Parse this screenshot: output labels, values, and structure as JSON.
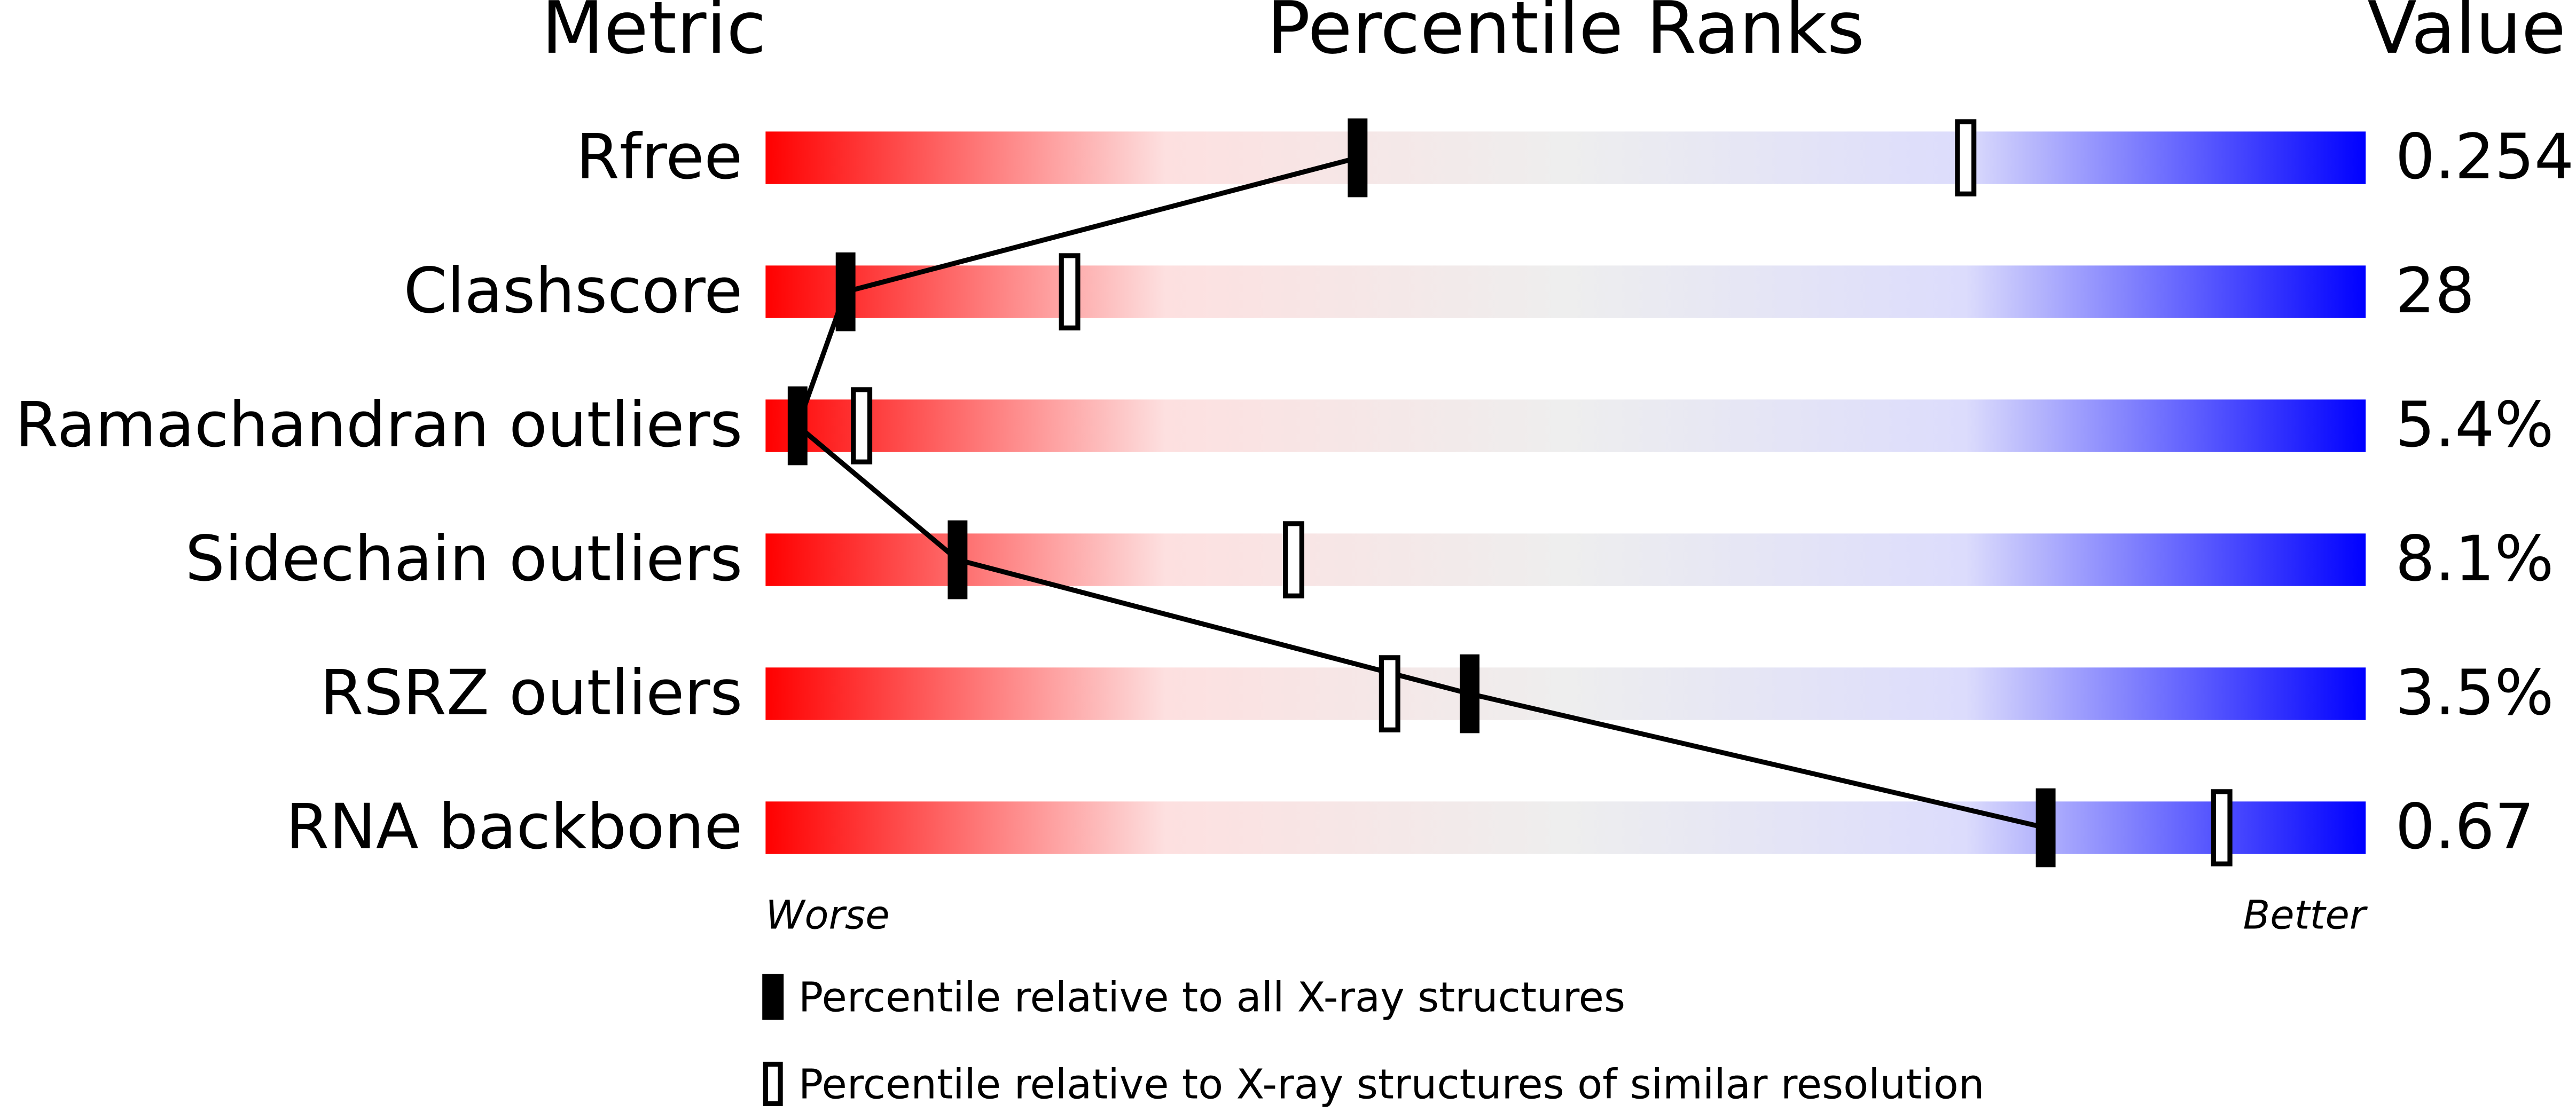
{
  "chart_data": {
    "type": "percentile",
    "title": "Percentile Ranks",
    "metric_header": "Metric",
    "value_header": "Value",
    "categories": [
      "Rfree",
      "Clashscore",
      "Ramachandran outliers",
      "Sidechain outliers",
      "RSRZ outliers",
      "RNA backbone"
    ],
    "metric_values": [
      "0.254",
      "28",
      "5.4%",
      "8.1%",
      "3.5%",
      "0.67"
    ],
    "series": [
      {
        "name": "Percentile relative to all X-ray structures",
        "color": "#000000",
        "style": "solid",
        "values": [
          37,
          5,
          2,
          12,
          44,
          80
        ]
      },
      {
        "name": "Percentile relative to X-ray structures of similar resolution",
        "color": "#000000",
        "style": "open",
        "values": [
          75,
          19,
          6,
          33,
          39,
          91
        ]
      }
    ],
    "xlim": [
      0,
      100
    ],
    "worse_label": "Worse",
    "better_label": "Better",
    "gradient": [
      "#ff0000",
      "#fde0e0",
      "#eeeeee",
      "#dcdcfc",
      "#0000ff"
    ]
  }
}
